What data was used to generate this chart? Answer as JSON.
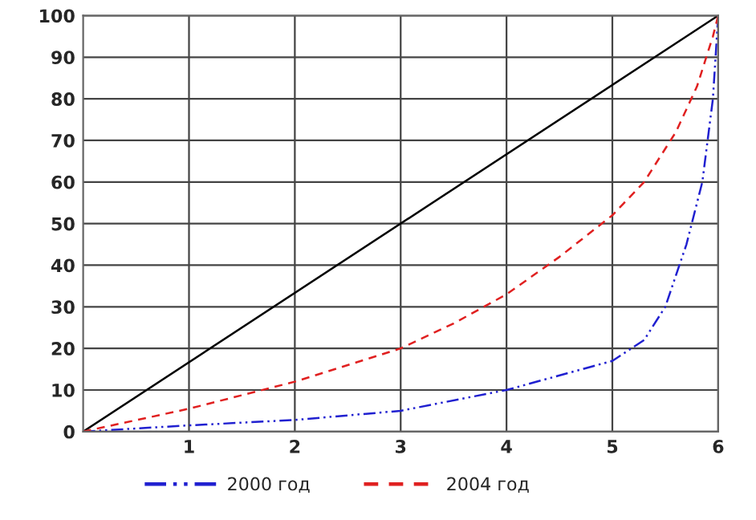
{
  "chart_data": {
    "type": "line",
    "series": [
      {
        "color": "#000000",
        "line_style": "solid",
        "x": [
          0,
          6
        ],
        "values": [
          0,
          100
        ]
      },
      {
        "name": "2000 год",
        "color": "#2020d0",
        "line_style": "dashdot",
        "x": [
          0,
          1,
          2,
          3,
          4,
          5,
          5.3,
          5.5,
          5.7,
          5.85,
          5.95,
          6
        ],
        "values": [
          0,
          1.5,
          2.8,
          5,
          10,
          17,
          22,
          30,
          45,
          60,
          80,
          100
        ]
      },
      {
        "name": "2004 год",
        "color": "#e02020",
        "line_style": "dashed",
        "x": [
          0,
          1,
          2,
          3,
          3.5,
          4,
          4.5,
          5,
          5.3,
          5.6,
          5.8,
          5.95,
          6
        ],
        "values": [
          0,
          5.5,
          12,
          20,
          26,
          33,
          42,
          52,
          60,
          72,
          83,
          95,
          100
        ]
      }
    ],
    "xlim": [
      0,
      6
    ],
    "xticks": [
      1,
      2,
      3,
      4,
      5,
      6
    ],
    "ylim": [
      0,
      100
    ],
    "yticks": [
      0,
      10,
      20,
      30,
      40,
      50,
      60,
      70,
      80,
      90,
      100
    ],
    "grid": true,
    "legend": "bottom",
    "marker": "none"
  }
}
